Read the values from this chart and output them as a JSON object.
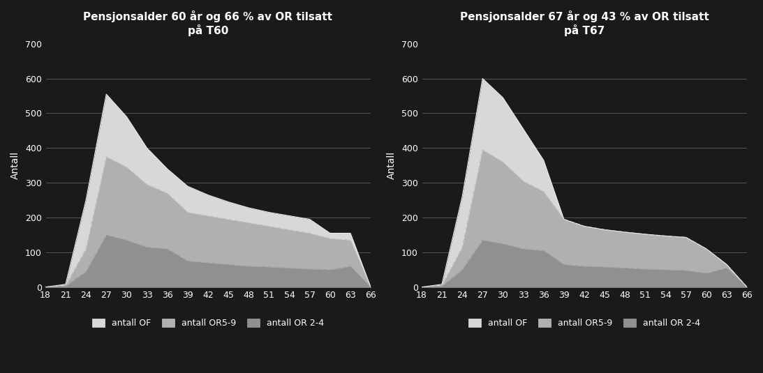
{
  "background_color": "#1a1a1a",
  "text_color": "#ffffff",
  "grid_color": "#606060",
  "x_ticks": [
    18,
    21,
    24,
    27,
    30,
    33,
    36,
    39,
    42,
    45,
    48,
    51,
    54,
    57,
    60,
    63,
    66
  ],
  "ylim": [
    0,
    700
  ],
  "yticks": [
    0,
    100,
    200,
    300,
    400,
    500,
    600,
    700
  ],
  "ylabel": "Antall",
  "chart1": {
    "title": "Pensjonsalder 60 år og 66 % av OR tilsatt\npå T60",
    "OF": [
      0,
      8,
      250,
      555,
      490,
      400,
      340,
      290,
      265,
      245,
      228,
      215,
      205,
      195,
      155,
      155,
      0
    ],
    "OR59": [
      0,
      5,
      110,
      375,
      345,
      295,
      270,
      215,
      205,
      195,
      185,
      175,
      165,
      155,
      140,
      135,
      0
    ],
    "OR24": [
      0,
      3,
      45,
      150,
      135,
      115,
      110,
      75,
      70,
      65,
      60,
      58,
      55,
      52,
      50,
      60,
      0
    ]
  },
  "chart2": {
    "title": "Pensjonsalder 67 år og 43 % av OR tilsatt\npå T67",
    "OF": [
      0,
      8,
      260,
      600,
      545,
      455,
      365,
      195,
      175,
      165,
      158,
      152,
      147,
      143,
      110,
      65,
      0
    ],
    "OR59": [
      0,
      5,
      115,
      395,
      360,
      305,
      275,
      195,
      175,
      165,
      158,
      152,
      147,
      143,
      110,
      65,
      0
    ],
    "OR24": [
      0,
      3,
      50,
      135,
      125,
      110,
      105,
      65,
      60,
      58,
      55,
      52,
      50,
      48,
      40,
      55,
      0
    ]
  },
  "legend_labels": [
    "antall OF",
    "antall OR5-9",
    "antall OR 2-4"
  ],
  "fill_color_OF": "#d8d8d8",
  "fill_color_OR59": "#b0b0b0",
  "fill_color_OR24": "#909090",
  "line_color_OF": "#e8e8e8",
  "line_color_OR59": "#c0c0c0",
  "line_color_OR24": "#a0a0a0",
  "title_fontsize": 11,
  "tick_fontsize": 9,
  "ylabel_fontsize": 10
}
